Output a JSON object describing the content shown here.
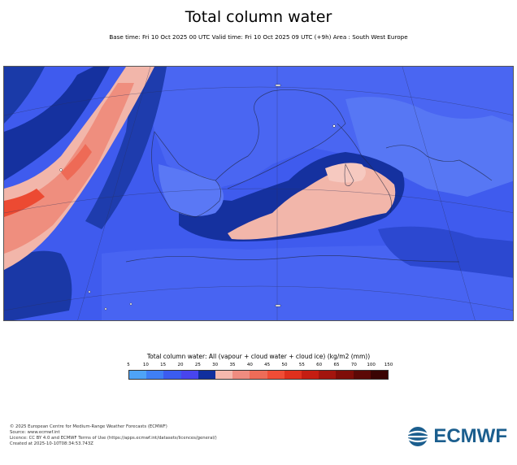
{
  "title": "Total column water",
  "subtitle": "Base time: Fri 10 Oct 2025 00 UTC Valid time: Fri 10 Oct 2025 09 UTC (+9h) Area : South West Europe",
  "map": {
    "area": "South West Europe",
    "variable": "Total column water",
    "units": "kg/m2 (mm)"
  },
  "legend": {
    "title": "Total column water: All (vapour + cloud water + cloud ice) (kg/m2 (mm))",
    "ticks": [
      "5",
      "10",
      "15",
      "20",
      "25",
      "30",
      "35",
      "40",
      "45",
      "50",
      "55",
      "60",
      "65",
      "70",
      "100",
      "150"
    ],
    "colors": [
      "#4ea3f7",
      "#3f7ff5",
      "#3b5cf0",
      "#4845ee",
      "#102f9e",
      "#f5b8ad",
      "#f08c80",
      "#ee6c58",
      "#f04d36",
      "#e0301d",
      "#c51d12",
      "#a3150d",
      "#7f0d08",
      "#5c0806",
      "#3a0403"
    ]
  },
  "credits": [
    "© 2025 European Centre for Medium-Range Weather Forecasts (ECMWF)",
    "Source: www.ecmwf.int",
    "Licence: CC BY 4.0 and ECMWF Terms of Use (https://apps.ecmwf.int/datasets/licences/general/)",
    "Created at 2025-10-10T08:34:53.743Z"
  ],
  "logo": {
    "text": "ECMWF",
    "icon": "ecmwf-logo-icon",
    "color": "#1b5e8e"
  }
}
